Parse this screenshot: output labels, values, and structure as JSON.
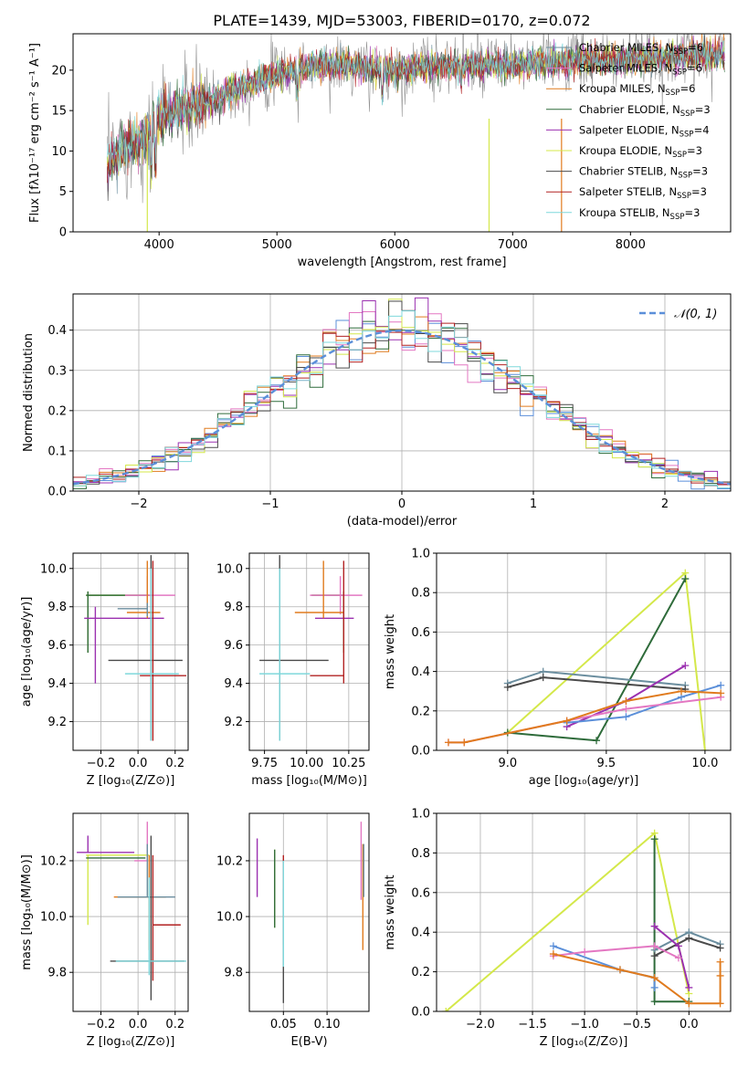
{
  "chart_data": [
    {
      "id": "spectrum",
      "type": "line",
      "title": "PLATE=1439, MJD=53003, FIBERID=0170, z=0.072",
      "xlabel": "wavelength [Angstrom, rest frame]",
      "ylabel": "Flux [fλ10⁻¹⁷ erg cm⁻² s⁻¹ A⁻¹]",
      "xlim": [
        3270,
        8850
      ],
      "ylim": [
        0,
        24.5
      ],
      "xticks": [
        4000,
        5000,
        6000,
        7000,
        8000
      ],
      "yticks": [
        0,
        5,
        10,
        15,
        20
      ],
      "grid": false,
      "legend_position": "top-right",
      "continuum_x": [
        3560,
        3700,
        3800,
        3900,
        4000,
        4100,
        4300,
        4500,
        4700,
        5000,
        5300,
        5600,
        6000,
        6300,
        6600,
        7000,
        7400,
        7800,
        8200,
        8800
      ],
      "continuum_y": [
        8.5,
        10.5,
        11,
        12,
        14,
        15,
        15.5,
        16.5,
        18,
        19.5,
        20.5,
        20.5,
        20,
        20.5,
        20.5,
        20.7,
        21,
        21.2,
        21.5,
        22
      ],
      "series": [
        {
          "name": "Chabrier MILES, N_SSP=6",
          "name_main": "Chabrier MILES, N",
          "name_sub": "SSP",
          "name_tail": "=6",
          "color": "#6b8e9f"
        },
        {
          "name": "Salpeter MILES, N_SSP=6",
          "name_main": "Salpeter MILES, N",
          "name_sub": "SSP",
          "name_tail": "=6",
          "color": "#e377c2"
        },
        {
          "name": "Kroupa MILES, N_SSP=6",
          "name_main": "Kroupa MILES, N",
          "name_sub": "SSP",
          "name_tail": "=6",
          "color": "#e07b1e"
        },
        {
          "name": "Chabrier ELODIE, N_SSP=3",
          "name_main": "Chabrier ELODIE, N",
          "name_sub": "SSP",
          "name_tail": "=3",
          "color": "#2e6b3a"
        },
        {
          "name": "Salpeter ELODIE, N_SSP=4",
          "name_main": "Salpeter ELODIE, N",
          "name_sub": "SSP",
          "name_tail": "=4",
          "color": "#9b30b0"
        },
        {
          "name": "Kroupa ELODIE, N_SSP=3",
          "name_main": "Kroupa ELODIE, N",
          "name_sub": "SSP",
          "name_tail": "=3",
          "color": "#d4e84a"
        },
        {
          "name": "Chabrier STELIB, N_SSP=3",
          "name_main": "Chabrier STELIB, N",
          "name_sub": "SSP",
          "name_tail": "=3",
          "color": "#4a4a4a"
        },
        {
          "name": "Salpeter STELIB, N_SSP=3",
          "name_main": "Salpeter STELIB, N",
          "name_sub": "SSP",
          "name_tail": "=3",
          "color": "#b22222"
        },
        {
          "name": "Kroupa STELIB, N_SSP=3",
          "name_main": "Kroupa STELIB, N",
          "name_sub": "SSP",
          "name_tail": "=3",
          "color": "#7fd8dc"
        }
      ]
    },
    {
      "id": "residuals",
      "type": "histogram",
      "xlabel": "(data-model)/error",
      "ylabel": "Normed distribution",
      "xlim": [
        -2.5,
        2.5
      ],
      "ylim": [
        0,
        0.49
      ],
      "xticks": [
        -2,
        -1,
        0,
        1,
        2
      ],
      "yticks": [
        0.0,
        0.1,
        0.2,
        0.3,
        0.4
      ],
      "grid": true,
      "legend_position": "top-right",
      "legend_label": "𝒩(0, 1)",
      "gaussian": {
        "mean": 0,
        "sigma": 1,
        "color": "#5b8fd9"
      },
      "histogram_colors": [
        "#5b8fd9",
        "#e377c2",
        "#e07b1e",
        "#2e6b3a",
        "#9b30b0",
        "#d4e84a",
        "#4a4a4a",
        "#b22222",
        "#7fd8dc"
      ]
    },
    {
      "id": "age-vs-Z",
      "type": "errorbar",
      "xlabel": "Z [log₁₀(Z/Z⊙)]",
      "ylabel": "age  [log₁₀(age/yr)]",
      "xlim": [
        -0.35,
        0.27
      ],
      "ylim": [
        9.05,
        10.08
      ],
      "xticks": [
        -0.2,
        0.0,
        0.2
      ],
      "yticks": [
        9.2,
        9.4,
        9.6,
        9.8,
        10.0
      ],
      "grid": true,
      "points": [
        {
          "x": -0.27,
          "y": 9.86,
          "xerr": [
            0.01,
            0.33
          ],
          "yerr": [
            0.3,
            0.02
          ],
          "color": "#d4e84a"
        },
        {
          "x": -0.27,
          "y": 9.86,
          "xerr": [
            0.01,
            0.33
          ],
          "yerr": [
            0.3,
            0.02
          ],
          "color": "#2e6b3a"
        },
        {
          "x": -0.23,
          "y": 9.74,
          "xerr": [
            0.06,
            0.37
          ],
          "yerr": [
            0.34,
            0.06
          ],
          "color": "#9b30b0"
        },
        {
          "x": 0.05,
          "y": 9.86,
          "xerr": [
            0.12,
            0.15
          ],
          "yerr": [
            0.1,
            0.1
          ],
          "color": "#e377c2"
        },
        {
          "x": 0.05,
          "y": 9.77,
          "xerr": [
            0.11,
            0.07
          ],
          "yerr": [
            0.03,
            0.27
          ],
          "color": "#e07b1e"
        },
        {
          "x": 0.05,
          "y": 9.79,
          "xerr": [
            0.16,
            0.0
          ],
          "yerr": [
            0.04,
            0.03
          ],
          "color": "#6b8e9f"
        },
        {
          "x": 0.07,
          "y": 9.52,
          "xerr": [
            0.23,
            0.17
          ],
          "yerr": [
            0.42,
            0.55
          ],
          "color": "#4a4a4a"
        },
        {
          "x": 0.08,
          "y": 9.44,
          "xerr": [
            0.07,
            0.18
          ],
          "yerr": [
            0.34,
            0.6
          ],
          "color": "#b22222"
        },
        {
          "x": 0.07,
          "y": 9.45,
          "xerr": [
            0.14,
            0.15
          ],
          "yerr": [
            0.35,
            0.55
          ],
          "color": "#7fd8dc"
        }
      ]
    },
    {
      "id": "age-vs-mass",
      "type": "errorbar",
      "xlabel": "mass [log₁₀(M/M⊙)]",
      "xlim": [
        9.66,
        10.37
      ],
      "ylim": [
        9.05,
        10.08
      ],
      "xticks": [
        9.75,
        10.0,
        10.25
      ],
      "yticks": [
        9.2,
        9.4,
        9.6,
        9.8,
        10.0
      ],
      "grid": true,
      "points": [
        {
          "x": 10.22,
          "y": 9.86,
          "xerr": [
            0.19,
            0.0
          ],
          "yerr": [
            0.3,
            0.02
          ],
          "color": "#d4e84a"
        },
        {
          "x": 10.22,
          "y": 9.86,
          "xerr": [
            0.19,
            0.0
          ],
          "yerr": [
            0.3,
            0.02
          ],
          "color": "#2e6b3a"
        },
        {
          "x": 10.22,
          "y": 9.74,
          "xerr": [
            0.17,
            0.06
          ],
          "yerr": [
            0.0,
            0.0
          ],
          "color": "#9b30b0"
        },
        {
          "x": 10.2,
          "y": 9.86,
          "xerr": [
            0.18,
            0.13
          ],
          "yerr": [
            0.1,
            0.1
          ],
          "color": "#e377c2"
        },
        {
          "x": 10.1,
          "y": 9.77,
          "xerr": [
            0.17,
            0.12
          ],
          "yerr": [
            0.03,
            0.27
          ],
          "color": "#e07b1e"
        },
        {
          "x": 9.84,
          "y": 9.52,
          "xerr": [
            0.12,
            0.29
          ],
          "yerr": [
            0.42,
            0.55
          ],
          "color": "#4a4a4a"
        },
        {
          "x": 10.22,
          "y": 9.44,
          "xerr": [
            0.2,
            0.0
          ],
          "yerr": [
            0.04,
            0.6
          ],
          "color": "#b22222"
        },
        {
          "x": 9.84,
          "y": 9.45,
          "xerr": [
            0.12,
            0.18
          ],
          "yerr": [
            0.35,
            0.55
          ],
          "color": "#7fd8dc"
        }
      ]
    },
    {
      "id": "weight-vs-age",
      "type": "line",
      "xlabel": "age  [log₁₀(age/yr)]",
      "ylabel": "mass weight",
      "xlim": [
        8.64,
        10.13
      ],
      "ylim": [
        0,
        1.0
      ],
      "xticks": [
        9.0,
        9.5,
        10.0
      ],
      "yticks": [
        0.0,
        0.2,
        0.4,
        0.6,
        0.8,
        1.0
      ],
      "grid": true,
      "series": [
        {
          "color": "#d4e84a",
          "x": [
            9.0,
            9.9,
            10.0
          ],
          "y": [
            0.09,
            0.9,
            0.0
          ]
        },
        {
          "color": "#2e6b3a",
          "x": [
            9.0,
            9.45,
            9.9
          ],
          "y": [
            0.09,
            0.05,
            0.87
          ]
        },
        {
          "color": "#6b8e9f",
          "x": [
            9.0,
            9.18,
            9.9
          ],
          "y": [
            0.34,
            0.4,
            0.33
          ]
        },
        {
          "color": "#4a4a4a",
          "x": [
            9.0,
            9.18,
            9.9
          ],
          "y": [
            0.32,
            0.37,
            0.31
          ]
        },
        {
          "color": "#9b30b0",
          "x": [
            9.3,
            9.6,
            9.9
          ],
          "y": [
            0.12,
            0.25,
            0.43
          ]
        },
        {
          "color": "#5b8fd9",
          "x": [
            9.3,
            9.6,
            9.88,
            10.08
          ],
          "y": [
            0.14,
            0.17,
            0.27,
            0.33
          ]
        },
        {
          "color": "#e377c2",
          "x": [
            8.7,
            8.78,
            9.3,
            9.6,
            10.08
          ],
          "y": [
            0.04,
            0.04,
            0.15,
            0.21,
            0.27
          ]
        },
        {
          "color": "#e07b1e",
          "x": [
            8.7,
            8.78,
            9.3,
            9.6,
            9.88,
            10.08
          ],
          "y": [
            0.04,
            0.04,
            0.15,
            0.25,
            0.3,
            0.29
          ]
        }
      ]
    },
    {
      "id": "mass-vs-Z",
      "type": "errorbar",
      "xlabel": "Z [log₁₀(Z/Z⊙)]",
      "ylabel": "mass [log₁₀(M/M⊙)]",
      "xlim": [
        -0.35,
        0.27
      ],
      "ylim": [
        9.66,
        10.37
      ],
      "xticks": [
        -0.2,
        0.0,
        0.2
      ],
      "yticks": [
        9.8,
        10.0,
        10.2
      ],
      "grid": true,
      "points": [
        {
          "x": -0.27,
          "y": 10.22,
          "xerr": [
            0.01,
            0.33
          ],
          "yerr": [
            0.25,
            0.0
          ],
          "color": "#d4e84a"
        },
        {
          "x": -0.27,
          "y": 10.21,
          "xerr": [
            0.01,
            0.31
          ],
          "yerr": [
            0.0,
            0.0
          ],
          "color": "#2e6b3a"
        },
        {
          "x": -0.27,
          "y": 10.23,
          "xerr": [
            0.06,
            0.25
          ],
          "yerr": [
            0.0,
            0.06
          ],
          "color": "#9b30b0"
        },
        {
          "x": 0.05,
          "y": 10.2,
          "xerr": [
            0.07,
            0.0
          ],
          "yerr": [
            0.0,
            0.14
          ],
          "color": "#e377c2"
        },
        {
          "x": 0.06,
          "y": 10.07,
          "xerr": [
            0.19,
            0.09
          ],
          "yerr": [
            0.19,
            0.15
          ],
          "color": "#e07b1e"
        },
        {
          "x": 0.05,
          "y": 10.07,
          "xerr": [
            0.16,
            0.15
          ],
          "yerr": [
            0.0,
            0.19
          ],
          "color": "#6b8e9f"
        },
        {
          "x": 0.08,
          "y": 9.97,
          "xerr": [
            0.0,
            0.15
          ],
          "yerr": [
            0.2,
            0.25
          ],
          "color": "#b22222"
        },
        {
          "x": 0.07,
          "y": 9.84,
          "xerr": [
            0.22,
            0.18
          ],
          "yerr": [
            0.14,
            0.45
          ],
          "color": "#4a4a4a"
        },
        {
          "x": 0.06,
          "y": 9.84,
          "xerr": [
            0.18,
            0.2
          ],
          "yerr": [
            0.05,
            0.3
          ],
          "color": "#7fd8dc"
        }
      ]
    },
    {
      "id": "mass-vs-EBV",
      "type": "errorbar",
      "xlabel": "E(B-V)",
      "xlim": [
        0.011,
        0.148
      ],
      "ylim": [
        9.66,
        10.37
      ],
      "xticks": [
        0.05,
        0.1
      ],
      "yticks": [
        9.8,
        10.0,
        10.2
      ],
      "grid": true,
      "points": [
        {
          "x": 0.02,
          "y": 10.18,
          "xerr": [
            0,
            0
          ],
          "yerr": [
            0.11,
            0.1
          ],
          "color": "#9b30b0"
        },
        {
          "x": 0.04,
          "y": 10.1,
          "xerr": [
            0,
            0
          ],
          "yerr": [
            0.14,
            0.14
          ],
          "color": "#d4e84a"
        },
        {
          "x": 0.04,
          "y": 10.1,
          "xerr": [
            0,
            0
          ],
          "yerr": [
            0.14,
            0.14
          ],
          "color": "#2e6b3a"
        },
        {
          "x": 0.05,
          "y": 10.06,
          "xerr": [
            0,
            0
          ],
          "yerr": [
            0.16,
            0.16
          ],
          "color": "#b22222"
        },
        {
          "x": 0.05,
          "y": 9.9,
          "xerr": [
            0,
            0
          ],
          "yerr": [
            0.21,
            0.2
          ],
          "color": "#4a4a4a"
        },
        {
          "x": 0.05,
          "y": 9.96,
          "xerr": [
            0,
            0
          ],
          "yerr": [
            0.14,
            0.24
          ],
          "color": "#7fd8dc"
        },
        {
          "x": 0.139,
          "y": 10.2,
          "xerr": [
            0,
            0
          ],
          "yerr": [
            0.14,
            0.14
          ],
          "color": "#e377c2"
        },
        {
          "x": 0.141,
          "y": 10.07,
          "xerr": [
            0,
            0
          ],
          "yerr": [
            0.19,
            0.19
          ],
          "color": "#e07b1e"
        },
        {
          "x": 0.142,
          "y": 10.07,
          "xerr": [
            0,
            0
          ],
          "yerr": [
            0.0,
            0.19
          ],
          "color": "#6b8e9f"
        }
      ]
    },
    {
      "id": "weight-vs-Z",
      "type": "line",
      "xlabel": "Z [log₁₀(Z/Z⊙)]",
      "ylabel": "mass weight",
      "xlim": [
        -2.42,
        0.4
      ],
      "ylim": [
        0,
        1.0
      ],
      "xticks": [
        -2.0,
        -1.5,
        -1.0,
        -0.5,
        0.0
      ],
      "yticks": [
        0.0,
        0.2,
        0.4,
        0.6,
        0.8,
        1.0
      ],
      "grid": true,
      "series": [
        {
          "color": "#d4e84a",
          "x": [
            -2.33,
            -0.33,
            0.0
          ],
          "y": [
            0.0,
            0.9,
            0.09
          ]
        },
        {
          "color": "#2e6b3a",
          "x": [
            -0.33,
            -0.33,
            0.0
          ],
          "y": [
            0.87,
            0.05,
            0.05
          ]
        },
        {
          "color": "#6b8e9f",
          "x": [
            -0.33,
            0.0,
            0.3
          ],
          "y": [
            0.31,
            0.4,
            0.34
          ]
        },
        {
          "color": "#4a4a4a",
          "x": [
            -0.33,
            0.0,
            0.3
          ],
          "y": [
            0.28,
            0.37,
            0.32
          ]
        },
        {
          "color": "#9b30b0",
          "x": [
            -0.33,
            -0.1,
            0.0
          ],
          "y": [
            0.43,
            0.33,
            0.12
          ]
        },
        {
          "color": "#5b8fd9",
          "x": [
            -1.3,
            -0.66,
            -0.33,
            -0.33
          ],
          "y": [
            0.33,
            0.21,
            0.17,
            0.12
          ]
        },
        {
          "color": "#e377c2",
          "x": [
            -1.3,
            -1.0,
            -0.33,
            -0.1
          ],
          "y": [
            0.28,
            0.3,
            0.33,
            0.27
          ]
        },
        {
          "color": "#e07b1e",
          "x": [
            -1.3,
            -0.66,
            -0.33,
            0.0,
            0.3,
            0.3,
            0.3
          ],
          "y": [
            0.29,
            0.21,
            0.17,
            0.04,
            0.04,
            0.25,
            0.18
          ]
        }
      ]
    }
  ]
}
